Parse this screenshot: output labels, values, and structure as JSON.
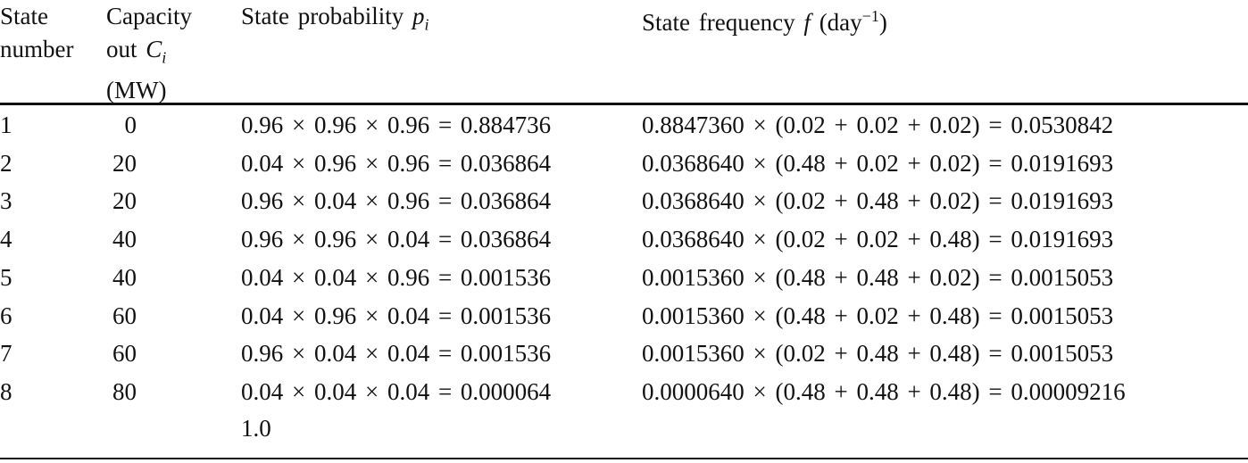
{
  "header": [
    {
      "text": "State number"
    },
    {
      "text": "Capacity out",
      "symbol": "C",
      "subscript": "i",
      "unit": "(MW)"
    },
    {
      "text": "State probability",
      "symbol": "p",
      "subscript": "i"
    },
    {
      "text": "State frequency",
      "symbol": "f",
      "unit_open": "(day",
      "superscript": "−1",
      "unit_close": ")"
    }
  ],
  "rows": [
    [
      "1",
      "0",
      "0.96 × 0.96 × 0.96 = 0.884736",
      "0.8847360 × (0.02 + 0.02 + 0.02) = 0.0530842"
    ],
    [
      "2",
      "20",
      "0.04 × 0.96 × 0.96 = 0.036864",
      "0.0368640 × (0.48 + 0.02 + 0.02) = 0.0191693"
    ],
    [
      "3",
      "20",
      "0.96 × 0.04 × 0.96 = 0.036864",
      "0.0368640 × (0.02 + 0.48 + 0.02) = 0.0191693"
    ],
    [
      "4",
      "40",
      "0.96 × 0.96 × 0.04 = 0.036864",
      "0.0368640 × (0.02 + 0.02 + 0.48) = 0.0191693"
    ],
    [
      "5",
      "40",
      "0.04 × 0.04 × 0.96 = 0.001536",
      "0.0015360 × (0.48 + 0.48 + 0.02) = 0.0015053"
    ],
    [
      "6",
      "60",
      "0.04 × 0.96 × 0.04 = 0.001536",
      "0.0015360 × (0.48 + 0.02 + 0.48) = 0.0015053"
    ],
    [
      "7",
      "60",
      "0.96 × 0.04 × 0.04 = 0.001536",
      "0.0015360 × (0.02 + 0.48 + 0.48) = 0.0015053"
    ],
    [
      "8",
      "80",
      "0.04 × 0.04 × 0.04 = 0.000064",
      "0.0000640 × (0.48 + 0.48 + 0.48) = 0.00009216"
    ]
  ],
  "total_row": {
    "probability": "1.0"
  }
}
